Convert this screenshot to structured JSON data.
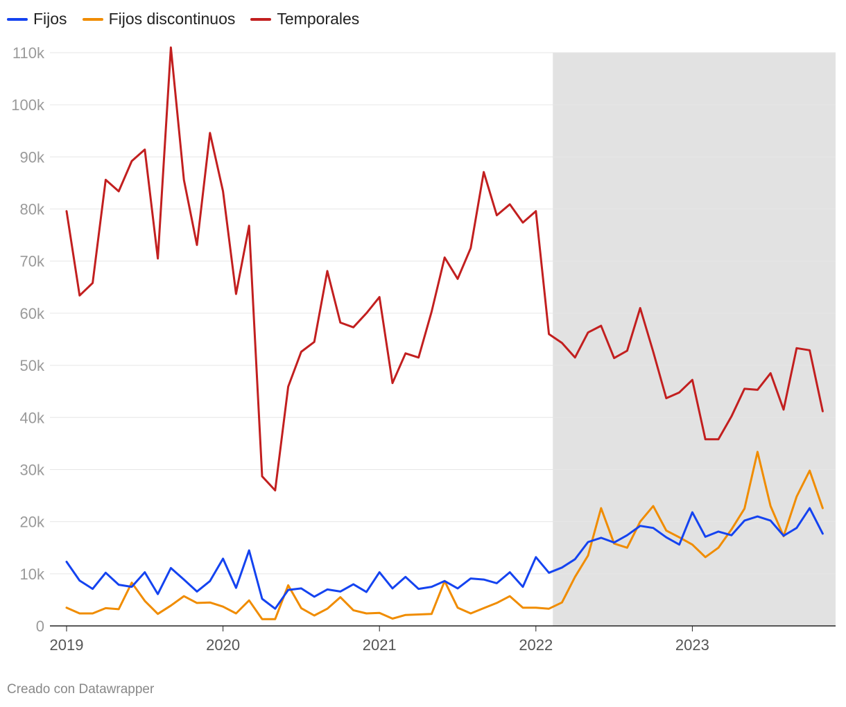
{
  "colors": {
    "fijos": "#1443f0",
    "fijos_discontinuos": "#f08c00",
    "temporales": "#c21f1f",
    "shade": "#e2e2e2",
    "grid": "#e6e6e6"
  },
  "credit": "Creado con Datawrapper",
  "chart_data": {
    "type": "line",
    "title": "",
    "xlabel": "",
    "ylabel": "",
    "ylim": [
      0,
      110000
    ],
    "yticks": [
      0,
      10000,
      20000,
      30000,
      40000,
      50000,
      60000,
      70000,
      80000,
      90000,
      100000,
      110000
    ],
    "ytick_labels": [
      "0",
      "10k",
      "20k",
      "30k",
      "40k",
      "50k",
      "60k",
      "70k",
      "80k",
      "90k",
      "100k",
      "110k"
    ],
    "x_start": "2019-01",
    "x_count": 59,
    "xticks": [
      0,
      12,
      24,
      36,
      48
    ],
    "xtick_labels": [
      "2019",
      "2020",
      "2021",
      "2022",
      "2023"
    ],
    "shaded_from_index": 37.3,
    "legend_position": "top-left",
    "series": [
      {
        "name": "Fijos",
        "key": "fijos",
        "values": [
          12300,
          8700,
          7100,
          10200,
          7900,
          7500,
          10300,
          6100,
          11100,
          8900,
          6600,
          8600,
          12900,
          7300,
          14500,
          5200,
          3300,
          6900,
          7200,
          5600,
          7000,
          6600,
          8000,
          6500,
          10300,
          7200,
          9400,
          7100,
          7500,
          8600,
          7200,
          9100,
          8900,
          8200,
          10300,
          7500,
          13200,
          10200,
          11200,
          12800,
          16100,
          16900,
          16000,
          17400,
          19200,
          18800,
          17000,
          15600,
          21800,
          17100,
          18100,
          17400,
          20200,
          21000,
          20200,
          17300,
          18800,
          22600,
          17700
        ]
      },
      {
        "name": "Fijos discontinuos",
        "key": "fijos_discontinuos",
        "values": [
          3500,
          2400,
          2400,
          3400,
          3200,
          8300,
          4800,
          2300,
          3900,
          5700,
          4400,
          4500,
          3700,
          2400,
          4900,
          1300,
          1300,
          7800,
          3400,
          2000,
          3300,
          5500,
          3000,
          2400,
          2500,
          1400,
          2100,
          2200,
          2300,
          8600,
          3500,
          2400,
          3400,
          4400,
          5700,
          3500,
          3500,
          3300,
          4500,
          9400,
          13500,
          22600,
          15800,
          15000,
          20000,
          23000,
          18300,
          17000,
          15600,
          13200,
          15000,
          18500,
          22500,
          33400,
          23000,
          17200,
          24800,
          29800,
          22600
        ]
      },
      {
        "name": "Temporales",
        "key": "temporales",
        "values": [
          79600,
          63400,
          65800,
          85600,
          83400,
          89200,
          91400,
          70500,
          111000,
          85600,
          73100,
          94600,
          83400,
          63700,
          76800,
          28700,
          26000,
          45900,
          52600,
          54500,
          68100,
          58200,
          57300,
          60000,
          63100,
          46600,
          52300,
          51500,
          60300,
          70700,
          66600,
          72500,
          87100,
          78800,
          80900,
          77400,
          79600,
          56000,
          54300,
          51500,
          56300,
          57600,
          51400,
          52800,
          61000,
          52600,
          43700,
          44800,
          47200,
          35800,
          35800,
          40200,
          45500,
          45300,
          48500,
          41500,
          53300,
          52900,
          41200
        ]
      }
    ]
  },
  "legend": [
    {
      "label": "Fijos",
      "key": "fijos"
    },
    {
      "label": "Fijos discontinuos",
      "key": "fijos_discontinuos"
    },
    {
      "label": "Temporales",
      "key": "temporales"
    }
  ]
}
